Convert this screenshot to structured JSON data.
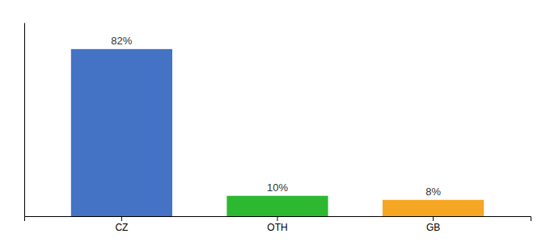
{
  "chart_data": {
    "type": "bar",
    "categories": [
      "CZ",
      "OTH",
      "GB"
    ],
    "values": [
      82,
      10,
      8
    ],
    "value_labels": [
      "82%",
      "10%",
      "8%"
    ],
    "data_labels": true,
    "colors": [
      "#4472c4",
      "#2db832",
      "#f5a623"
    ],
    "ylim": [
      0,
      95
    ],
    "tick_labels": "x",
    "grid": false
  }
}
